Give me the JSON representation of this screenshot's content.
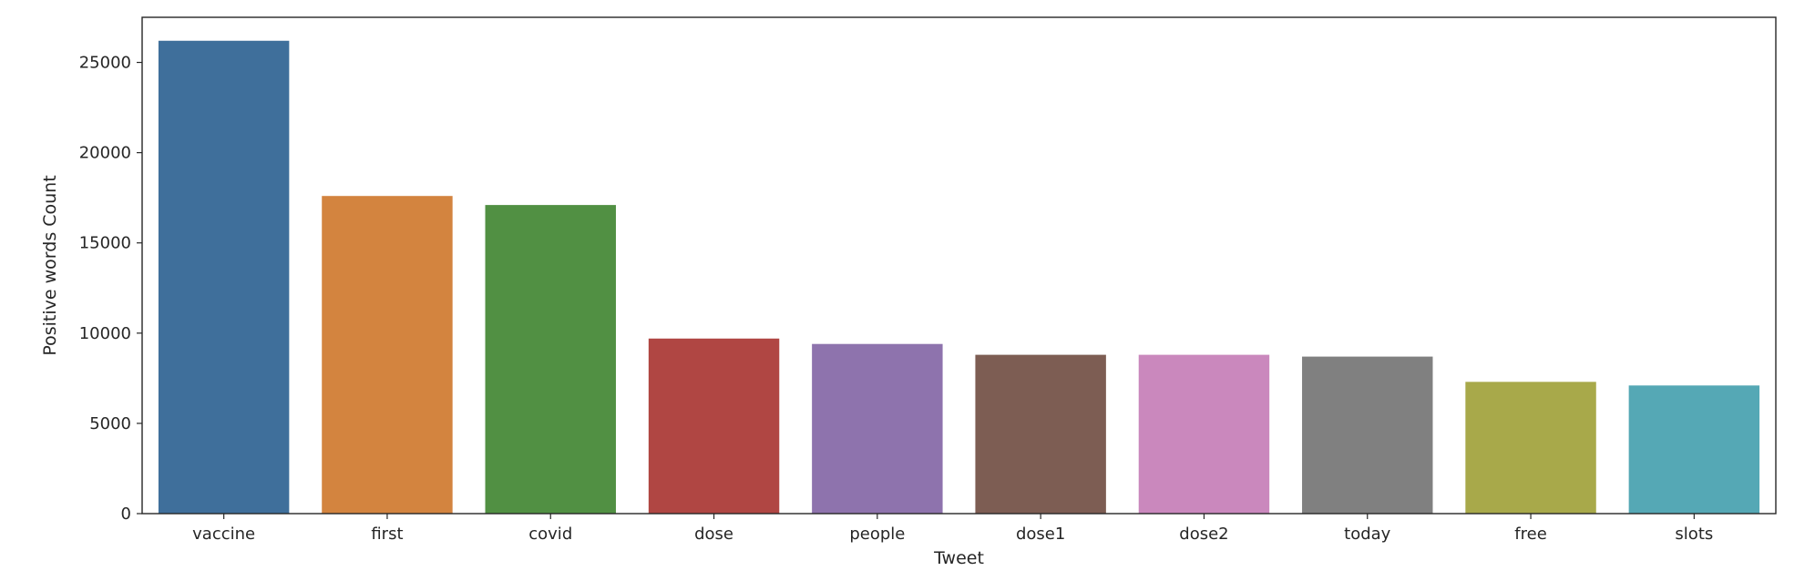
{
  "chart_data": {
    "type": "bar",
    "title": "",
    "xlabel": "Tweet",
    "ylabel": "Positive words Count",
    "categories": [
      "vaccine",
      "first",
      "covid",
      "dose",
      "people",
      "dose1",
      "dose2",
      "today",
      "free",
      "slots"
    ],
    "values": [
      26200,
      17600,
      17100,
      9700,
      9400,
      8800,
      8800,
      8700,
      7300,
      7100
    ],
    "colors": [
      "#3f6f9b",
      "#d3843f",
      "#519043",
      "#b04643",
      "#8e73ad",
      "#7d5d53",
      "#ca88bd",
      "#808080",
      "#a8a94a",
      "#55a8b5"
    ],
    "ylim": [
      0,
      27500
    ],
    "yticks": [
      0,
      5000,
      10000,
      15000,
      20000,
      25000
    ],
    "grid": false,
    "legend": "none"
  }
}
